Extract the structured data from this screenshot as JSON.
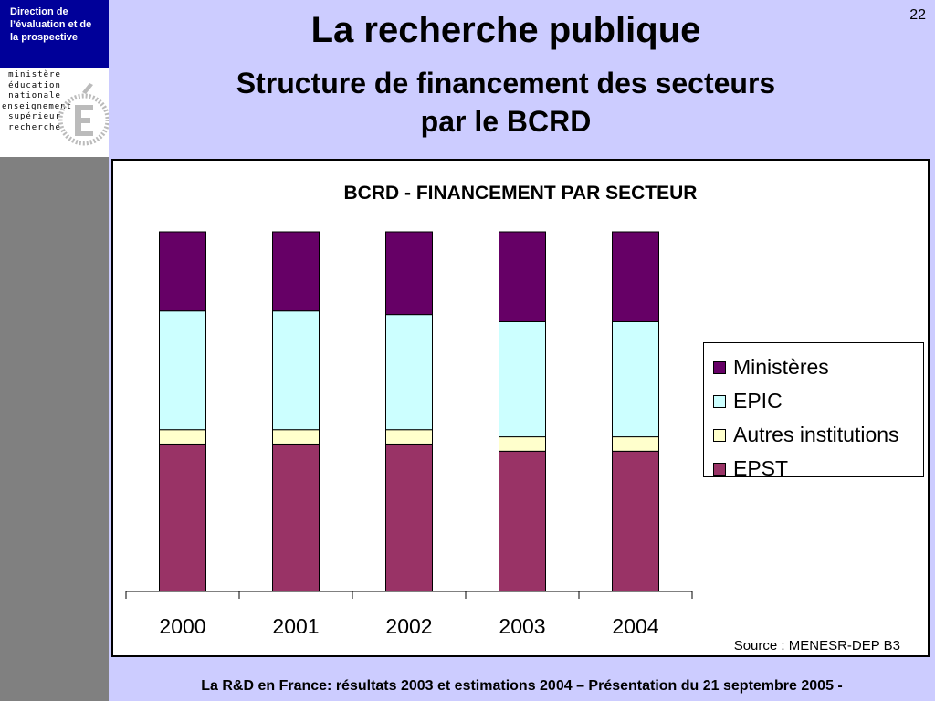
{
  "header": {
    "directorate_lines": [
      "Direction de",
      "l’évaluation  et de",
      "la prospective"
    ],
    "logo_lines": [
      "ministère",
      "éducation",
      "nationale",
      "enseignement",
      "supérieur",
      "recherche"
    ],
    "page_number": "22",
    "title": "La recherche publique",
    "subtitle_lines": [
      "Structure de financement des secteurs",
      "par le BCRD"
    ]
  },
  "chart_data": {
    "type": "bar",
    "stacked": true,
    "normalized_to_percent": true,
    "title": "BCRD - FINANCEMENT PAR SECTEUR",
    "categories": [
      "2000",
      "2001",
      "2002",
      "2003",
      "2004"
    ],
    "series": [
      {
        "name": "EPST",
        "values": [
          41,
          41,
          41,
          39,
          39
        ],
        "color": "#993366"
      },
      {
        "name": "Autres institutions",
        "values": [
          4,
          4,
          4,
          4,
          4
        ],
        "color": "#ffffcc"
      },
      {
        "name": "EPIC",
        "values": [
          33,
          33,
          32,
          32,
          32
        ],
        "color": "#ccffff"
      },
      {
        "name": "Ministères",
        "values": [
          22,
          22,
          23,
          25,
          25
        ],
        "color": "#660066"
      }
    ],
    "legend_order": [
      "Ministères",
      "EPIC",
      "Autres institutions",
      "EPST"
    ],
    "legend_position": "right",
    "ylim": [
      0,
      100
    ],
    "grid": false,
    "source": "Source : MENESR-DEP B3"
  },
  "footer": {
    "text": "La R&D en France: résultats 2003 et estimations 2004 – Présentation du 21 septembre 2005 -"
  }
}
